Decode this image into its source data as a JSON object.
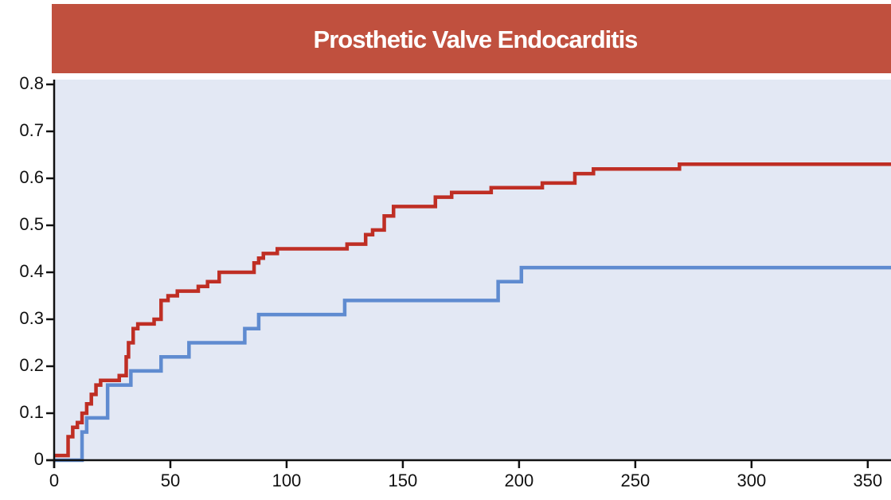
{
  "chart_data": {
    "type": "step",
    "title": "Prosthetic Valve Endocarditis",
    "series": [
      {
        "color": "#bf2e24",
        "x": [
          0,
          6,
          8,
          10,
          12,
          14,
          16,
          18,
          20,
          28,
          29,
          31,
          32,
          34,
          36,
          43,
          46,
          49,
          53,
          62,
          66,
          71,
          86,
          88,
          90,
          96,
          126,
          134,
          137,
          142,
          146,
          164,
          171,
          188,
          210,
          224,
          232,
          269,
          360
        ],
        "values": [
          0.01,
          0.05,
          0.07,
          0.08,
          0.1,
          0.12,
          0.14,
          0.16,
          0.17,
          0.18,
          0.18,
          0.22,
          0.25,
          0.28,
          0.29,
          0.3,
          0.34,
          0.35,
          0.36,
          0.37,
          0.38,
          0.4,
          0.42,
          0.43,
          0.44,
          0.45,
          0.46,
          0.48,
          0.49,
          0.52,
          0.54,
          0.56,
          0.57,
          0.58,
          0.59,
          0.61,
          0.62,
          0.63,
          0.63
        ]
      },
      {
        "color": "#5f8bd0",
        "x": [
          0,
          12,
          14,
          23,
          33,
          46,
          58,
          82,
          88,
          125,
          191,
          201,
          360
        ],
        "values": [
          0,
          0.06,
          0.09,
          0.16,
          0.19,
          0.22,
          0.25,
          0.28,
          0.31,
          0.34,
          0.38,
          0.41,
          0.41
        ]
      }
    ],
    "xlim": [
      0,
      360
    ],
    "xticks": [
      0,
      50,
      100,
      150,
      200,
      250,
      300,
      350
    ],
    "ylim": [
      0,
      0.8
    ],
    "yticks": [
      0,
      0.1,
      0.2,
      0.3,
      0.4,
      0.5,
      0.6,
      0.7,
      0.8
    ],
    "title_color": "#c0503e",
    "plot_background": "#e3e8f4"
  }
}
